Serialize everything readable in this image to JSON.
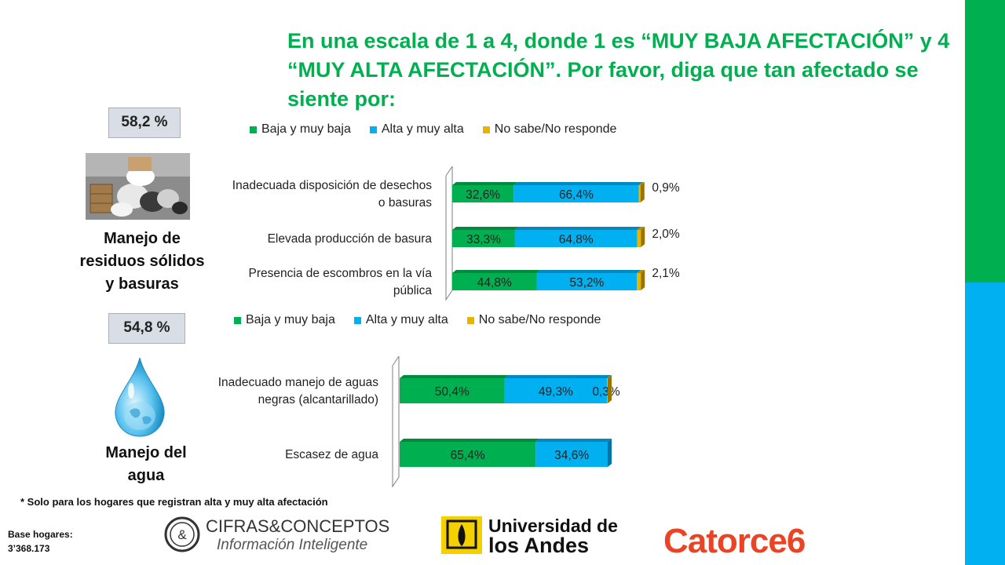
{
  "title": "En una escala de 1 a 4, donde 1 es “MUY BAJA AFECTACIÓN” y 4 “MUY ALTA AFECTACIÓN”. Por favor, diga que tan afectado se siente por:",
  "colors": {
    "green": "#00b050",
    "blue": "#00b0f0",
    "gold": "#e8b400",
    "title": "#00b050"
  },
  "sections": [
    {
      "percent": "58,2 %",
      "label_lines": [
        "Manejo de",
        "residuos sólidos",
        "y basuras"
      ],
      "icon": "trash-pile-photo"
    },
    {
      "percent": "54,8 %",
      "label_lines": [
        "Manejo del",
        "agua"
      ],
      "icon": "water-drop-icon"
    }
  ],
  "legend": [
    "Baja y muy baja",
    "Alta y muy alta",
    "No sabe/No responde"
  ],
  "chart_data": [
    {
      "type": "bar",
      "orientation": "horizontal",
      "stacked": true,
      "categories": [
        [
          "Inadecuada disposición de desechos",
          "o basuras"
        ],
        [
          "Elevada producción de basura"
        ],
        [
          "Presencia de escombros en la vía",
          "pública"
        ]
      ],
      "series": [
        {
          "name": "Baja y muy baja",
          "values": [
            32.6,
            33.3,
            44.8
          ],
          "labels": [
            "32,6%",
            "33,3%",
            "44,8%"
          ]
        },
        {
          "name": "Alta y muy alta",
          "values": [
            66.4,
            64.8,
            53.2
          ],
          "labels": [
            "66,4%",
            "64,8%",
            "53,2%"
          ]
        },
        {
          "name": "No sabe/No responde",
          "values": [
            0.9,
            2.0,
            2.1
          ],
          "labels": [
            "0,9%",
            "2,0%",
            "2,1%"
          ]
        }
      ]
    },
    {
      "type": "bar",
      "orientation": "horizontal",
      "stacked": true,
      "categories": [
        [
          "Inadecuado manejo de aguas",
          "negras (alcantarillado)"
        ],
        [
          "Escasez de agua"
        ]
      ],
      "series": [
        {
          "name": "Baja y muy baja",
          "values": [
            50.4,
            65.4
          ],
          "labels": [
            "50,4%",
            "65,4%"
          ]
        },
        {
          "name": "Alta y muy alta",
          "values": [
            49.3,
            34.6
          ],
          "labels": [
            "49,3%",
            "34,6%"
          ]
        },
        {
          "name": "No sabe/No responde",
          "values": [
            0.3,
            0
          ],
          "labels": [
            "0,3%",
            ""
          ]
        }
      ]
    }
  ],
  "footnote": "* Solo para los hogares que registran alta y muy alta afectación",
  "base": {
    "line1": "Base hogares:",
    "line2": "3’368.173"
  },
  "logos": {
    "cifras": {
      "line1": "CIFRAS&CONCEPTOS",
      "line2": "Información Inteligente",
      "mark": "&"
    },
    "andes": {
      "line1": "Universidad de",
      "line2": "los Andes"
    },
    "catorce": {
      "text": "Catorce6"
    }
  }
}
